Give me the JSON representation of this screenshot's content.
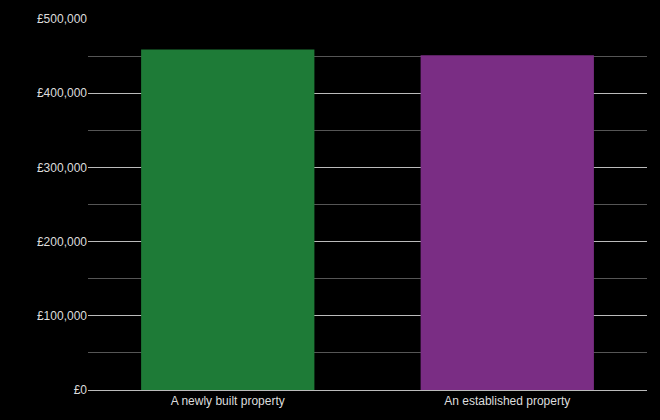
{
  "chart_data": {
    "type": "bar",
    "categories": [
      "A newly built property",
      "An established property"
    ],
    "values": [
      459000,
      451000
    ],
    "colors": [
      "#1e7b37",
      "#7a2d84"
    ],
    "ylim": [
      0,
      500000
    ],
    "yticks": [
      {
        "value": 0,
        "label": "£0"
      },
      {
        "value": 100000,
        "label": "£100,000"
      },
      {
        "value": 200000,
        "label": "£200,000"
      },
      {
        "value": 300000,
        "label": "£300,000"
      },
      {
        "value": 400000,
        "label": "£400,000"
      },
      {
        "value": 500000,
        "label": "£500,000"
      }
    ],
    "grid": true
  }
}
